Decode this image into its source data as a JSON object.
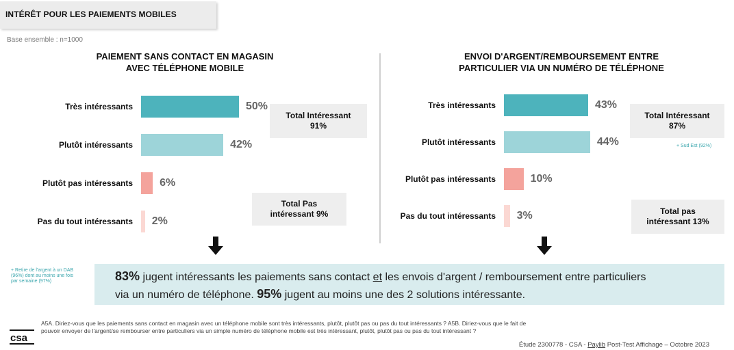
{
  "page": {
    "title": "INTÉRÊT POUR LES PAIEMENTS MOBILES",
    "base": "Base ensemble : n=1000",
    "left_note": "+ Retire de l'argent à un DAB (96%) dont au moins une fois par semaine (97%)",
    "banner": {
      "p1_pct": "83%",
      "p1_a": " jugent intéressants les paiements sans contact ",
      "p1_et": "et",
      "p1_b": " les envois d'argent / remboursement entre particuliers",
      "p2_a": "via un numéro de téléphone. ",
      "p2_pct": "95%",
      "p2_b": " jugent au moins une des 2 solutions intéressante."
    },
    "question": "A5A. Diriez-vous que les paiements sans contact en magasin avec un téléphone mobile sont très intéressants, plutôt, plutôt pas ou pas du tout intéressants ? A5B. Diriez-vous que le fait de pouvoir envoyer de l'argent/se rembourser entre particuliers via un simple numéro de téléphone mobile est très intéressant, plutôt, plutôt pas ou pas du tout intéressant ?",
    "footer_a": "Étude 2300778 - CSA - ",
    "footer_link": "Paylib",
    "footer_b": " Post-Test Affichage – Octobre 2023",
    "logo_text": "csa"
  },
  "chart_data": [
    {
      "type": "bar",
      "orientation": "horizontal",
      "title_line1": "PAIEMENT SANS CONTACT EN MAGASIN",
      "title_line2": "AVEC TÉLÉPHONE MOBILE",
      "categories": [
        "Très intéressants",
        "Plutôt intéressants",
        "Plutôt pas intéressants",
        "Pas du tout intéressants"
      ],
      "values": [
        50,
        42,
        6,
        2
      ],
      "value_labels": [
        "50%",
        "42%",
        "6%",
        "2%"
      ],
      "colors": [
        "#4db3bc",
        "#9dd4d9",
        "#f4a39c",
        "#fbd8d3"
      ],
      "total_pos_label": "Total Intéressant",
      "total_pos_value": "91%",
      "total_neg_label": "Total Pas intéressant 9%",
      "xlim": [
        0,
        50
      ]
    },
    {
      "type": "bar",
      "orientation": "horizontal",
      "title_line1": "ENVOI D'ARGENT/REMBOURSEMENT ENTRE",
      "title_line2": "PARTICULIER VIA UN NUMÉRO DE TÉLÉPHONE",
      "categories": [
        "Très intéressants",
        "Plutôt intéressants",
        "Plutôt pas intéressants",
        "Pas du tout intéressants"
      ],
      "values": [
        43,
        44,
        10,
        3
      ],
      "value_labels": [
        "43%",
        "44%",
        "10%",
        "3%"
      ],
      "colors": [
        "#4db3bc",
        "#9dd4d9",
        "#f4a39c",
        "#fbd8d3"
      ],
      "total_pos_label": "Total Intéressant",
      "total_pos_value": "87%",
      "total_pos_note": "+ Sud Est (92%)",
      "total_neg_label": "Total pas",
      "total_neg_value": "intéressant 13%",
      "xlim": [
        0,
        44
      ]
    }
  ]
}
